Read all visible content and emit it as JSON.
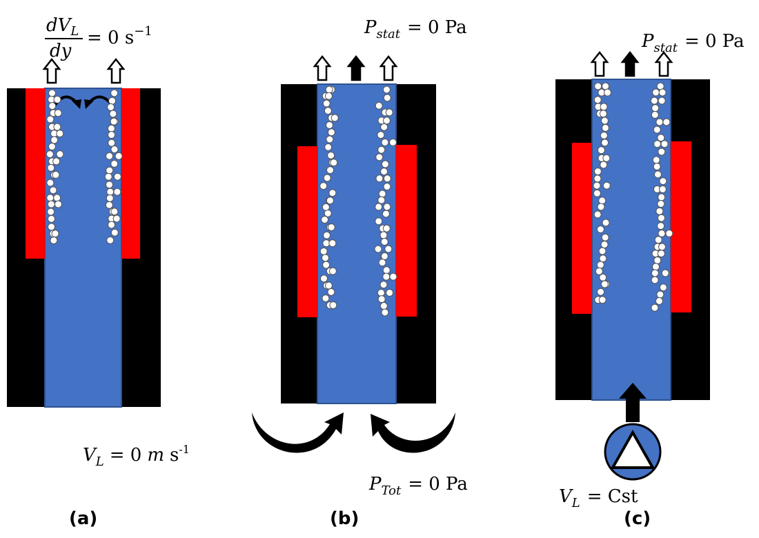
{
  "panels": [
    {
      "label": "(a)",
      "top_equation": {
        "numerator": "dV",
        "numerator_subscript": "L",
        "denominator": "dy",
        "rhs": "= 0 s",
        "rhs_superscript": "−1"
      },
      "bottom_equation": {
        "symbol": "V",
        "subscript": "L",
        "rhs": "= 0",
        "unit_italic": "m",
        "unit": "s",
        "unit_superscript": "-1"
      }
    },
    {
      "label": "(b)",
      "top_equation": {
        "symbol": "P",
        "subscript": "stat",
        "rhs": "= 0 Pa"
      },
      "bottom_equation": {
        "symbol": "P",
        "subscript": "Tot",
        "rhs": "= 0 Pa"
      }
    },
    {
      "label": "(c)",
      "top_equation": {
        "symbol": "P",
        "subscript": "stat",
        "rhs": "= 0 Pa"
      },
      "bottom_equation": {
        "symbol": "V",
        "subscript": "L",
        "rhs": "= Cst"
      }
    }
  ]
}
